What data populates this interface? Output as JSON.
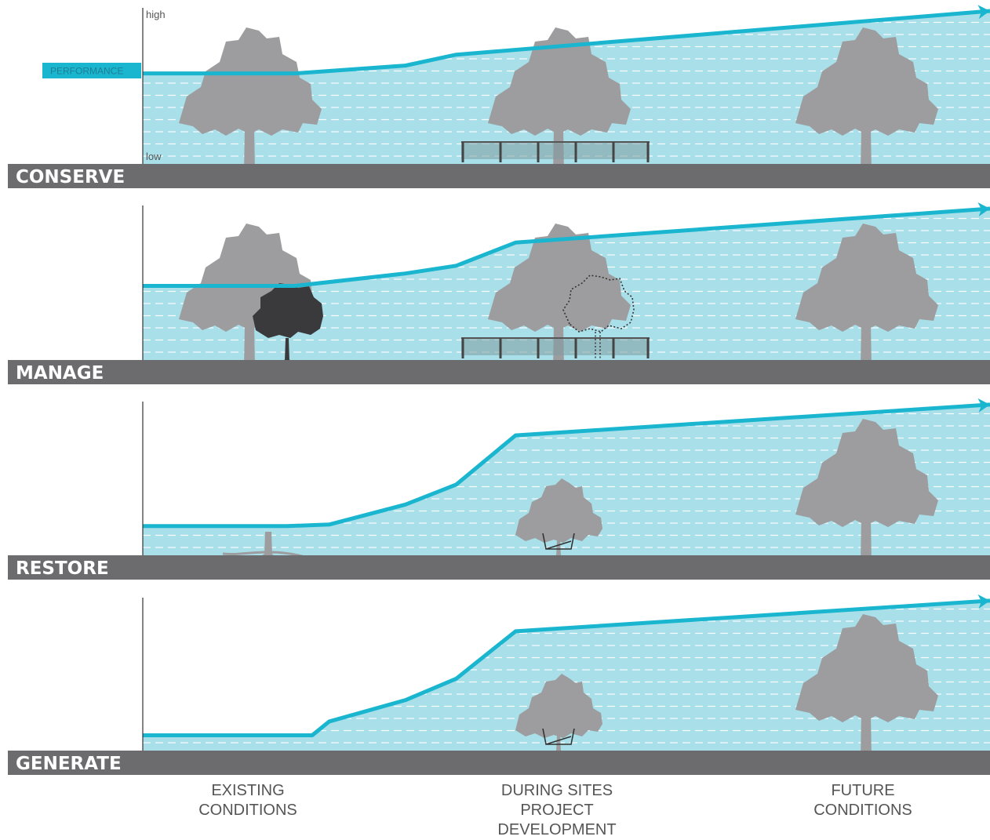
{
  "axis": {
    "high_label": "high",
    "low_label": "low",
    "performance_label": "PERFORMANCE"
  },
  "strategies": [
    {
      "name": "CONSERVE",
      "performance": [
        [
          0,
          0.58
        ],
        [
          0.17,
          0.58
        ],
        [
          0.18,
          0.58
        ],
        [
          0.31,
          0.63
        ],
        [
          0.37,
          0.7
        ],
        [
          1.0,
          0.98
        ]
      ],
      "trees": [
        {
          "stage": "existing",
          "kind": "mature"
        },
        {
          "stage": "during",
          "kind": "mature",
          "fence": true
        },
        {
          "stage": "future",
          "kind": "mature"
        }
      ]
    },
    {
      "name": "MANAGE",
      "performance": [
        [
          0,
          0.48
        ],
        [
          0.17,
          0.48
        ],
        [
          0.18,
          0.48
        ],
        [
          0.31,
          0.56
        ],
        [
          0.37,
          0.61
        ],
        [
          0.44,
          0.76
        ],
        [
          1.0,
          0.98
        ]
      ],
      "trees": [
        {
          "stage": "existing",
          "kind": "mature",
          "invasive": true
        },
        {
          "stage": "during",
          "kind": "mature",
          "fence": true,
          "removed": true
        },
        {
          "stage": "future",
          "kind": "mature"
        }
      ]
    },
    {
      "name": "RESTORE",
      "performance": [
        [
          0,
          0.19
        ],
        [
          0.17,
          0.19
        ],
        [
          0.22,
          0.2
        ],
        [
          0.31,
          0.33
        ],
        [
          0.37,
          0.46
        ],
        [
          0.44,
          0.78
        ],
        [
          1.0,
          0.98
        ]
      ],
      "trees": [
        {
          "stage": "existing",
          "kind": "stump"
        },
        {
          "stage": "during",
          "kind": "young"
        },
        {
          "stage": "future",
          "kind": "mature"
        }
      ]
    },
    {
      "name": "GENERATE",
      "performance": [
        [
          0,
          0.1
        ],
        [
          0.17,
          0.1
        ],
        [
          0.2,
          0.1
        ],
        [
          0.22,
          0.19
        ],
        [
          0.31,
          0.33
        ],
        [
          0.37,
          0.47
        ],
        [
          0.44,
          0.78
        ],
        [
          1.0,
          0.98
        ]
      ],
      "trees": [
        {
          "stage": "during",
          "kind": "young"
        },
        {
          "stage": "future",
          "kind": "mature"
        }
      ]
    }
  ],
  "stages": [
    {
      "id": "existing",
      "lines": [
        "EXISTING",
        "CONDITIONS"
      ]
    },
    {
      "id": "during",
      "lines": [
        "DURING SITES",
        "PROJECT",
        "DEVELOPMENT"
      ]
    },
    {
      "id": "future",
      "lines": [
        "FUTURE",
        "CONDITIONS"
      ]
    }
  ],
  "colors": {
    "line": "#1ab5cf",
    "fill": "#a8dfe9",
    "ground": "#6c6c6f",
    "tree": "#9d9d9f",
    "invasive": "#3a3a3c",
    "fence": "#7e9aa0"
  }
}
